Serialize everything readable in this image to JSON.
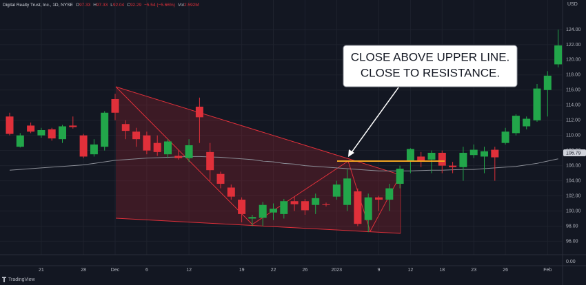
{
  "chart_data": {
    "type": "candlestick",
    "header": {
      "symbol": "Digital Realty Trust, Inc., 1D, NYSE",
      "fields": [
        {
          "key": "O",
          "value": "97.33"
        },
        {
          "key": "H",
          "value": "97.33"
        },
        {
          "key": "L",
          "value": "92.04"
        },
        {
          "key": "C",
          "value": "92.29"
        }
      ],
      "change": "−5.54 (−5.66%)",
      "volume": {
        "key": "Vol",
        "value": "2.592M"
      }
    },
    "currency": "USD",
    "annotation": [
      "CLOSE ABOVE UPPER LINE.",
      "CLOSE TO RESISTANCE."
    ],
    "last_price_label": "106.79",
    "volume_axis_label": "0.00",
    "brand": "TradingView",
    "up_color": "#22a64a",
    "down_color": "#e0303a",
    "ma_color": "#8a8d96",
    "categories": [
      null,
      null,
      null,
      "21",
      null,
      null,
      null,
      "28",
      null,
      null,
      "Dec",
      null,
      null,
      "6",
      null,
      null,
      null,
      "12",
      null,
      null,
      null,
      null,
      "19",
      null,
      null,
      "22",
      null,
      null,
      "26",
      null,
      null,
      "2023",
      null,
      null,
      null,
      "9",
      null,
      null,
      "12",
      null,
      null,
      "18",
      null,
      null,
      "23",
      null,
      null,
      "26",
      null,
      null,
      null,
      "Feb",
      null
    ],
    "open": [
      112.5,
      108.5,
      111.3,
      110,
      110.8,
      109.5,
      111.3,
      110,
      107.5,
      108.5,
      114.8,
      111.5,
      110.5,
      110,
      109,
      107.5,
      107.3,
      107,
      113.8,
      107.8,
      104.9,
      103.1,
      101.5,
      99,
      99.1,
      99.8,
      99.6,
      101.3,
      101.3,
      100.8,
      100.9,
      101.9,
      100.8,
      102.6,
      98.8,
      101.8,
      101.5,
      103.6,
      106.6,
      107.2,
      106.8,
      107.7,
      106.0,
      105.8,
      107.4,
      107.2,
      108.1,
      109,
      110.3,
      111.2,
      112,
      116,
      119.4
    ],
    "high": [
      113,
      110.3,
      111.7,
      111,
      111,
      111.4,
      112.5,
      110.2,
      109.5,
      113.2,
      115.5,
      112,
      111,
      110.5,
      110,
      109.5,
      108,
      109.5,
      115,
      109,
      105.2,
      103.5,
      101.8,
      99.5,
      101.2,
      101,
      101.6,
      101.9,
      101.6,
      102.3,
      101.1,
      104,
      105.5,
      103,
      102.3,
      102,
      103.6,
      106,
      108.3,
      107.8,
      108,
      108,
      106.5,
      108.5,
      108.8,
      108.5,
      108.5,
      111,
      112.8,
      112.5,
      116.8,
      118.5,
      124
    ],
    "low": [
      110,
      108.4,
      110.3,
      109.7,
      109.3,
      109,
      110.9,
      107,
      107.2,
      108,
      112,
      109.5,
      108.5,
      107.5,
      107.3,
      107,
      106.8,
      106.5,
      109,
      104,
      103,
      101.5,
      98.5,
      98,
      98,
      98.8,
      99,
      100,
      99.5,
      99.6,
      100.6,
      101.5,
      100,
      98,
      97.2,
      100,
      100,
      103,
      105,
      105.8,
      105,
      105,
      105,
      104,
      107,
      105,
      104,
      108.8,
      110,
      110.8,
      111.8,
      112.5,
      119
    ],
    "close": [
      110.2,
      110,
      110.5,
      110.7,
      109.6,
      111.2,
      111.1,
      107.2,
      108.8,
      113,
      113,
      110.6,
      109.5,
      108,
      107.8,
      109.2,
      107,
      108.7,
      112.4,
      105.4,
      103.6,
      101.9,
      99.6,
      99.2,
      100.8,
      100.3,
      101.3,
      100.9,
      100.1,
      101.7,
      100.8,
      103.5,
      104.3,
      98.3,
      101.8,
      101.5,
      103,
      105.6,
      108.2,
      106.6,
      107.7,
      106,
      105.8,
      107.7,
      108.1,
      107.9,
      107.1,
      110.5,
      112.6,
      112.2,
      116.2,
      117.9,
      121.9
    ],
    "ma": [
      105.4,
      105.5,
      105.6,
      105.7,
      105.8,
      105.9,
      106.0,
      106.1,
      106.3,
      106.5,
      106.7,
      106.8,
      106.9,
      107.0,
      107.05,
      107.1,
      107.15,
      107.2,
      107.2,
      107.15,
      107.1,
      107.0,
      106.9,
      106.8,
      106.6,
      106.5,
      106.3,
      106.2,
      106.0,
      105.9,
      105.8,
      105.7,
      105.6,
      105.5,
      105.4,
      105.3,
      105.3,
      105.3,
      105.3,
      105.35,
      105.4,
      105.4,
      105.45,
      105.5,
      105.5,
      105.6,
      105.7,
      105.8,
      105.9,
      106.1,
      106.3,
      106.6,
      106.9
    ],
    "ylim": [
      94.4,
      127
    ],
    "yticks": [
      {
        "value": 96,
        "label": "96.00"
      },
      {
        "value": 98,
        "label": "98.00"
      },
      {
        "value": 100,
        "label": "100.00"
      },
      {
        "value": 102,
        "label": "102.00"
      },
      {
        "value": 104,
        "label": "104.00"
      },
      {
        "value": 106,
        "label": "106.00"
      },
      {
        "value": 108,
        "label": "108.00"
      },
      {
        "value": 110,
        "label": "110.00"
      },
      {
        "value": 112,
        "label": "112.00"
      },
      {
        "value": 114,
        "label": "114.00"
      },
      {
        "value": 116,
        "label": "116.00"
      },
      {
        "value": 118,
        "label": "118.00"
      },
      {
        "value": 120,
        "label": "120.00"
      },
      {
        "value": 122,
        "label": "122.00"
      },
      {
        "value": 124,
        "label": "124.00"
      }
    ]
  }
}
